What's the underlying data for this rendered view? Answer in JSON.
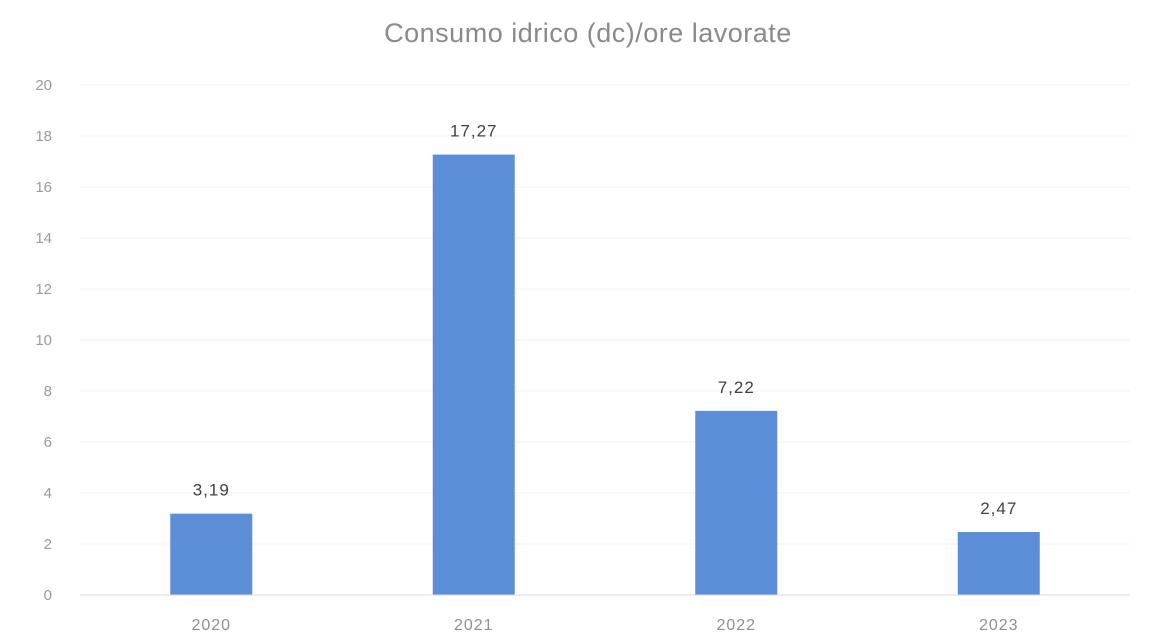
{
  "chart_data": {
    "type": "bar",
    "title": "Consumo idrico (dc)/ore lavorate",
    "xlabel": "",
    "ylabel": "",
    "categories": [
      "2020",
      "2021",
      "2022",
      "2023"
    ],
    "values": [
      3.19,
      17.27,
      7.22,
      2.47
    ],
    "data_labels": [
      "3,19",
      "17,27",
      "7,22",
      "2,47"
    ],
    "ylim": [
      0,
      20
    ],
    "yticks": [
      0,
      2,
      4,
      6,
      8,
      10,
      12,
      14,
      16,
      18,
      20
    ],
    "grid": true,
    "legend": "none",
    "bar_color": "#5b8ed6"
  }
}
